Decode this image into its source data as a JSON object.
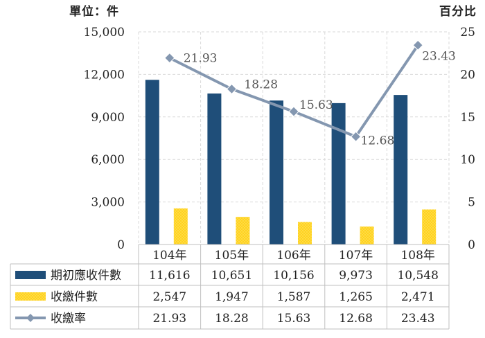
{
  "chart_data": {
    "type": "bar",
    "left_unit_label": "單位：件",
    "right_unit_label": "百分比",
    "categories": [
      "104年",
      "105年",
      "106年",
      "107年",
      "108年"
    ],
    "y_left": {
      "min": 0,
      "max": 15000,
      "ticks": [
        0,
        3000,
        6000,
        9000,
        12000,
        15000
      ],
      "tick_labels": [
        "0",
        "3,000",
        "6,000",
        "9,000",
        "12,000",
        "15,000"
      ]
    },
    "y_right": {
      "min": 0,
      "max": 25,
      "ticks": [
        0,
        5,
        10,
        15,
        20,
        25
      ],
      "tick_labels": [
        "0",
        "5",
        "10",
        "15",
        "20",
        "25"
      ]
    },
    "grid": true,
    "series": [
      {
        "name": "期初應收件數",
        "type": "bar",
        "axis": "left",
        "color": "#1f4e79",
        "values": [
          11616,
          10651,
          10156,
          9973,
          10548
        ],
        "labels": [
          "11,616",
          "10,651",
          "10,156",
          "9,973",
          "10,548"
        ]
      },
      {
        "name": "收繳件數",
        "type": "bar",
        "axis": "left",
        "color": "#ffd21f",
        "pattern": "dotted",
        "values": [
          2547,
          1947,
          1587,
          1265,
          2471
        ],
        "labels": [
          "2,547",
          "1,947",
          "1,587",
          "1,265",
          "2,471"
        ]
      },
      {
        "name": "收繳率",
        "type": "line",
        "axis": "right",
        "color": "#8497b0",
        "marker": "diamond",
        "values": [
          21.93,
          18.28,
          15.63,
          12.68,
          23.43
        ],
        "labels": [
          "21.93",
          "18.28",
          "15.63",
          "12.68",
          "23.43"
        ]
      }
    ]
  }
}
